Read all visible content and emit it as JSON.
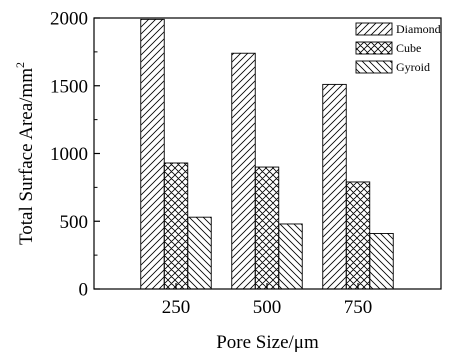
{
  "chart_data": {
    "type": "bar",
    "title": "",
    "xlabel": "Pore Size/μm",
    "ylabel_main": "Total Surface Area/mm",
    "ylabel_superscript": "2",
    "categories": [
      "250",
      "500",
      "750"
    ],
    "ylim": [
      0,
      2000
    ],
    "yticks": [
      "0",
      "500",
      "1000",
      "1500",
      "2000"
    ],
    "ytick_values": [
      0,
      500,
      1000,
      1500,
      2000
    ],
    "grid": false,
    "legend_position": "top-right",
    "series": [
      {
        "name": "Diamond",
        "pattern": "diagonal-forward",
        "values": [
          1990,
          1740,
          1510
        ]
      },
      {
        "name": "Cube",
        "pattern": "crosshatch",
        "values": [
          930,
          900,
          790
        ]
      },
      {
        "name": "Gyroid",
        "pattern": "diagonal-backward",
        "values": [
          530,
          480,
          410
        ]
      }
    ]
  }
}
